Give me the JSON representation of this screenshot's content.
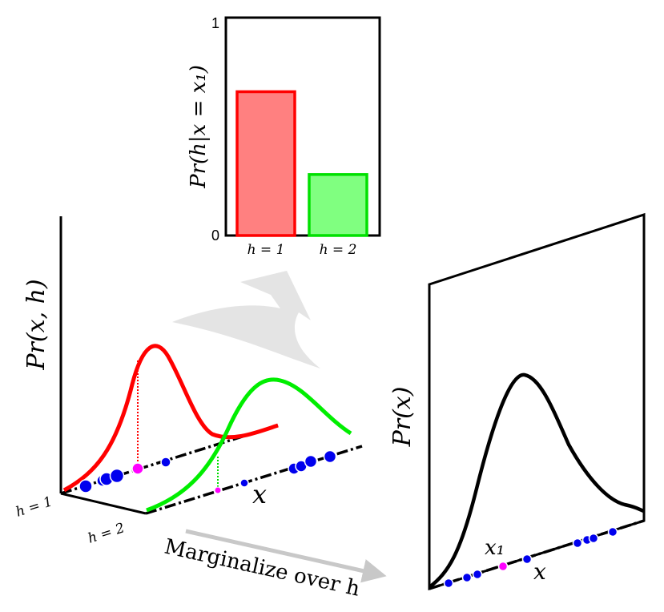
{
  "bar_chart": {
    "type": "bar",
    "ylabel": "Pr(h|x = x₁)",
    "categories": [
      "h = 1",
      "h = 2"
    ],
    "values": [
      0.66,
      0.28
    ],
    "ylim": [
      0,
      1
    ],
    "ytick_labels": [
      "0",
      "1"
    ],
    "colors": {
      "h1_fill": "#ff8080",
      "h1_stroke": "#ff0000",
      "h2_fill": "#80ff80",
      "h2_stroke": "#00e000"
    }
  },
  "joint_plot": {
    "ylabel": "Pr(x, h)",
    "xlabel": "x",
    "h1_label": "h = 1",
    "h2_label": "h = 2",
    "colors": {
      "h1": "#ff0000",
      "h2": "#00ee00",
      "points": "#0000ee",
      "query_point": "#ff00ff"
    }
  },
  "marginal_plot": {
    "ylabel": "Pr(x)",
    "xlabel": "x",
    "query_label": "x₁"
  },
  "arrow_label": "Marginalize over h"
}
